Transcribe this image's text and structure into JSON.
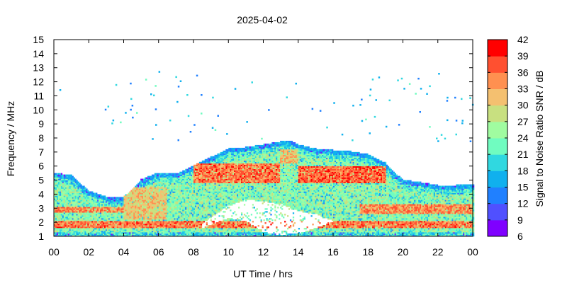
{
  "chart_data": {
    "type": "heatmap",
    "title": "2025-04-02",
    "xlabel": "UT Time / hrs",
    "ylabel": "Frequency / MHz",
    "xlim": [
      0,
      24
    ],
    "ylim": [
      1,
      15
    ],
    "x_ticks": [
      "00",
      "02",
      "04",
      "06",
      "08",
      "10",
      "12",
      "14",
      "16",
      "18",
      "20",
      "22",
      "00"
    ],
    "y_ticks": [
      "1",
      "2",
      "3",
      "4",
      "5",
      "6",
      "7",
      "8",
      "9",
      "10",
      "11",
      "12",
      "13",
      "14",
      "15"
    ],
    "colorbar": {
      "label": "Signal to Noise Ratio SNR / dB",
      "range": [
        6,
        42
      ],
      "ticks": [
        "42",
        "39",
        "36",
        "33",
        "30",
        "27",
        "24",
        "21",
        "18",
        "15",
        "12",
        "9",
        "6"
      ],
      "colors": [
        "#7f00ff",
        "#5050ff",
        "#2080ff",
        "#10b0ee",
        "#30d8e0",
        "#70fcc0",
        "#a0fca0",
        "#c8e080",
        "#f4c070",
        "#ff9050",
        "#ff5030",
        "#ff0000"
      ]
    },
    "grid": false,
    "upper_edge_mhz": {
      "hours": [
        0,
        1,
        2,
        3,
        3.5,
        4,
        4.5,
        5,
        6,
        7,
        8,
        9,
        10,
        11,
        12,
        13,
        13.5,
        14,
        15,
        16,
        17,
        18,
        19,
        19.5,
        20,
        21,
        22,
        23,
        24
      ],
      "values": [
        5.5,
        5.3,
        4.2,
        3.8,
        3.7,
        3.8,
        4.3,
        5.0,
        5.5,
        5.4,
        6.0,
        6.6,
        7.2,
        7.3,
        7.5,
        7.7,
        7.8,
        7.5,
        7.2,
        7.1,
        7.0,
        6.8,
        6.2,
        5.5,
        5.0,
        4.8,
        4.6,
        4.6,
        4.7
      ]
    },
    "lower_gap": {
      "hours": [
        8.5,
        10,
        11,
        12,
        13,
        14,
        15,
        16
      ],
      "top_mhz": [
        1.9,
        3.2,
        3.6,
        3.5,
        3.3,
        2.8,
        2.6,
        2.1
      ],
      "bottom_mhz": [
        1.6,
        2.3,
        2.1,
        1.3,
        1.1,
        1.2,
        1.6,
        2.0
      ]
    },
    "high_snr_bands": [
      {
        "hours": [
          0,
          24
        ],
        "mhz": [
          1.6,
          2.1
        ],
        "snr": 38
      },
      {
        "hours": [
          0,
          4
        ],
        "mhz": [
          2.7,
          3.1
        ],
        "snr": 37
      },
      {
        "hours": [
          4,
          6.5
        ],
        "mhz": [
          2.2,
          4.5
        ],
        "snr": 33
      },
      {
        "hours": [
          8,
          13
        ],
        "mhz": [
          4.8,
          6.2
        ],
        "snr": 38
      },
      {
        "hours": [
          14,
          19
        ],
        "mhz": [
          4.8,
          6.0
        ],
        "snr": 39
      },
      {
        "hours": [
          17.5,
          24
        ],
        "mhz": [
          2.6,
          3.3
        ],
        "snr": 37
      },
      {
        "hours": [
          13,
          14
        ],
        "mhz": [
          6.2,
          7.2
        ],
        "snr": 34
      }
    ]
  }
}
